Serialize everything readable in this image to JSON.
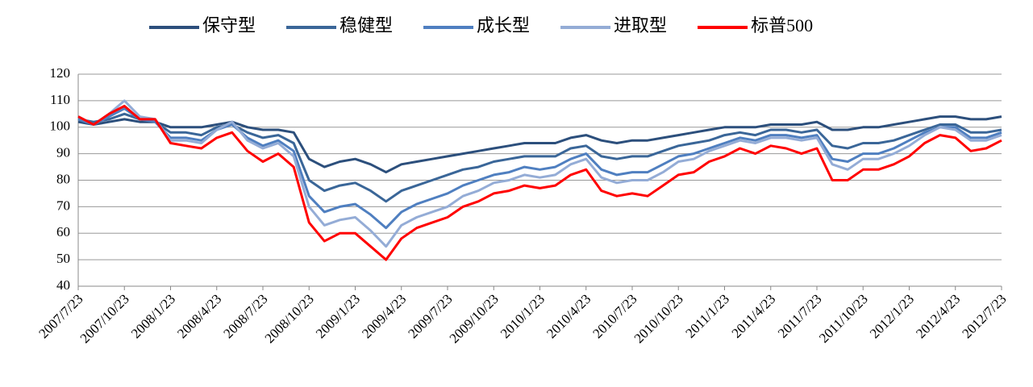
{
  "chart_data": {
    "type": "line",
    "categories": [
      "2007/7/23",
      null,
      null,
      "2007/10/23",
      null,
      null,
      "2008/1/23",
      null,
      null,
      "2008/4/23",
      null,
      null,
      "2008/7/23",
      null,
      null,
      "2008/10/23",
      null,
      null,
      "2009/1/23",
      null,
      null,
      "2009/4/23",
      null,
      null,
      "2009/7/23",
      null,
      null,
      "2009/10/23",
      null,
      null,
      "2010/1/23",
      null,
      null,
      "2010/4/23",
      null,
      null,
      "2010/7/23",
      null,
      null,
      "2010/10/23",
      null,
      null,
      "2011/1/23",
      null,
      null,
      "2011/4/23",
      null,
      null,
      "2011/7/23",
      null,
      null,
      "2011/10/23",
      null,
      null,
      "2012/1/23",
      null,
      null,
      "2012/4/23",
      null,
      null,
      "2012/7/23"
    ],
    "series": [
      {
        "name": "保守型",
        "color": "#2c4f7c",
        "values": [
          102,
          101,
          102,
          103,
          102,
          102,
          100,
          100,
          100,
          101,
          102,
          100,
          99,
          99,
          98,
          88,
          85,
          87,
          88,
          86,
          83,
          86,
          87,
          88,
          89,
          90,
          91,
          92,
          93,
          94,
          94,
          94,
          96,
          97,
          95,
          94,
          95,
          95,
          96,
          97,
          98,
          99,
          100,
          100,
          100,
          101,
          101,
          101,
          102,
          99,
          99,
          100,
          100,
          101,
          102,
          103,
          104,
          104,
          103,
          103,
          104
        ]
      },
      {
        "name": "稳健型",
        "color": "#3a6698",
        "values": [
          103,
          102,
          103,
          105,
          103,
          102,
          98,
          98,
          97,
          100,
          101,
          98,
          96,
          97,
          94,
          80,
          76,
          78,
          79,
          76,
          72,
          76,
          78,
          80,
          82,
          84,
          85,
          87,
          88,
          89,
          89,
          89,
          92,
          93,
          89,
          88,
          89,
          89,
          91,
          93,
          94,
          95,
          97,
          98,
          97,
          99,
          99,
          98,
          99,
          93,
          92,
          94,
          94,
          95,
          97,
          99,
          101,
          101,
          98,
          98,
          99
        ]
      },
      {
        "name": "成长型",
        "color": "#4f7fc0",
        "values": [
          103,
          101,
          104,
          107,
          103,
          102,
          96,
          96,
          95,
          99,
          101,
          96,
          93,
          95,
          91,
          74,
          68,
          70,
          71,
          67,
          62,
          68,
          71,
          73,
          75,
          78,
          80,
          82,
          83,
          85,
          84,
          85,
          88,
          90,
          84,
          82,
          83,
          83,
          86,
          89,
          90,
          92,
          94,
          96,
          95,
          97,
          97,
          96,
          97,
          88,
          87,
          90,
          90,
          92,
          95,
          98,
          100,
          100,
          96,
          96,
          98
        ]
      },
      {
        "name": "进取型",
        "color": "#94acd6",
        "values": [
          104,
          101,
          105,
          110,
          104,
          103,
          95,
          95,
          94,
          99,
          102,
          95,
          92,
          94,
          89,
          70,
          63,
          65,
          66,
          61,
          55,
          63,
          66,
          68,
          70,
          74,
          76,
          79,
          80,
          82,
          81,
          82,
          86,
          88,
          81,
          79,
          80,
          80,
          83,
          87,
          88,
          91,
          93,
          95,
          94,
          96,
          96,
          95,
          96,
          86,
          84,
          88,
          88,
          90,
          93,
          97,
          100,
          99,
          95,
          95,
          97
        ]
      },
      {
        "name": "标普500",
        "color": "#ff0000",
        "values": [
          104,
          101,
          105,
          108,
          103,
          103,
          94,
          93,
          92,
          96,
          98,
          91,
          87,
          90,
          85,
          64,
          57,
          60,
          60,
          55,
          50,
          58,
          62,
          64,
          66,
          70,
          72,
          75,
          76,
          78,
          77,
          78,
          82,
          84,
          76,
          74,
          75,
          74,
          78,
          82,
          83,
          87,
          89,
          92,
          90,
          93,
          92,
          90,
          92,
          80,
          80,
          84,
          84,
          86,
          89,
          94,
          97,
          96,
          91,
          92,
          95
        ]
      }
    ],
    "ylim": [
      40,
      120
    ],
    "yticks": [
      40,
      50,
      60,
      70,
      80,
      90,
      100,
      110,
      120
    ],
    "grid": true,
    "legend": "top"
  }
}
